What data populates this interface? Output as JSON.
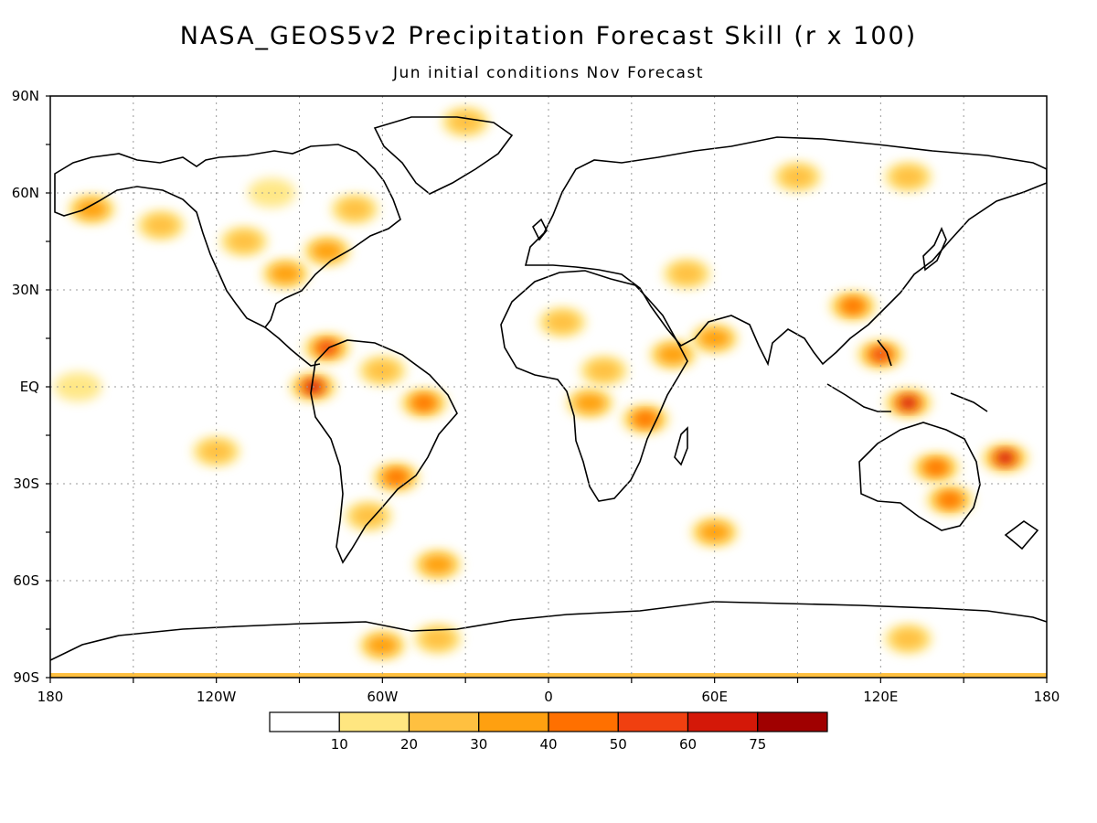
{
  "title": "NASA_GEOS5v2 Precipitation Forecast Skill (r x 100)",
  "subtitle": "Jun initial conditions  Nov Forecast",
  "map": {
    "lat_labels": [
      "90N",
      "60N",
      "30N",
      "EQ",
      "30S",
      "60S",
      "90S"
    ],
    "lon_labels": [
      "180",
      "120W",
      "60W",
      "0",
      "60E",
      "120E",
      "180"
    ],
    "grid": "dotted",
    "projection": "cylindrical-equidistant",
    "extent": {
      "lon": [
        -180,
        180
      ],
      "lat": [
        -90,
        90
      ]
    }
  },
  "colorbar": {
    "labels": [
      "10",
      "20",
      "30",
      "40",
      "50",
      "60",
      "75"
    ],
    "colors": [
      "#ffffff",
      "#ffe680",
      "#ffc040",
      "#ffa010",
      "#ff7000",
      "#f04010",
      "#d41808",
      "#a00000"
    ]
  },
  "skill_regions": [
    {
      "lon": -165,
      "lat": 55,
      "level": 3
    },
    {
      "lon": -140,
      "lat": 50,
      "level": 2
    },
    {
      "lon": -110,
      "lat": 45,
      "level": 2
    },
    {
      "lon": -95,
      "lat": 35,
      "level": 3
    },
    {
      "lon": -80,
      "lat": 42,
      "level": 3
    },
    {
      "lon": -70,
      "lat": 55,
      "level": 2
    },
    {
      "lon": -100,
      "lat": 60,
      "level": 1
    },
    {
      "lon": -80,
      "lat": 12,
      "level": 5
    },
    {
      "lon": -85,
      "lat": 0,
      "level": 6
    },
    {
      "lon": -60,
      "lat": 5,
      "level": 2
    },
    {
      "lon": -45,
      "lat": -5,
      "level": 4
    },
    {
      "lon": -55,
      "lat": -28,
      "level": 4
    },
    {
      "lon": -65,
      "lat": -40,
      "level": 2
    },
    {
      "lon": -40,
      "lat": -55,
      "level": 3
    },
    {
      "lon": -30,
      "lat": 82,
      "level": 2
    },
    {
      "lon": 5,
      "lat": 20,
      "level": 2
    },
    {
      "lon": 15,
      "lat": -5,
      "level": 3
    },
    {
      "lon": 20,
      "lat": 5,
      "level": 2
    },
    {
      "lon": 35,
      "lat": -10,
      "level": 4
    },
    {
      "lon": 45,
      "lat": 10,
      "level": 3
    },
    {
      "lon": 50,
      "lat": 35,
      "level": 2
    },
    {
      "lon": 60,
      "lat": 15,
      "level": 3
    },
    {
      "lon": 90,
      "lat": 65,
      "level": 2
    },
    {
      "lon": 130,
      "lat": 65,
      "level": 2
    },
    {
      "lon": 110,
      "lat": 25,
      "level": 4
    },
    {
      "lon": 120,
      "lat": 10,
      "level": 5
    },
    {
      "lon": 130,
      "lat": -5,
      "level": 6
    },
    {
      "lon": 140,
      "lat": -25,
      "level": 4
    },
    {
      "lon": 145,
      "lat": -35,
      "level": 4
    },
    {
      "lon": 165,
      "lat": -22,
      "level": 6
    },
    {
      "lon": -120,
      "lat": -20,
      "level": 2
    },
    {
      "lon": -170,
      "lat": 0,
      "level": 1
    },
    {
      "lon": -60,
      "lat": -80,
      "level": 3
    },
    {
      "lon": -40,
      "lat": -78,
      "level": 2
    },
    {
      "lon": 130,
      "lat": -78,
      "level": 2
    },
    {
      "lon": 60,
      "lat": -45,
      "level": 3
    }
  ]
}
